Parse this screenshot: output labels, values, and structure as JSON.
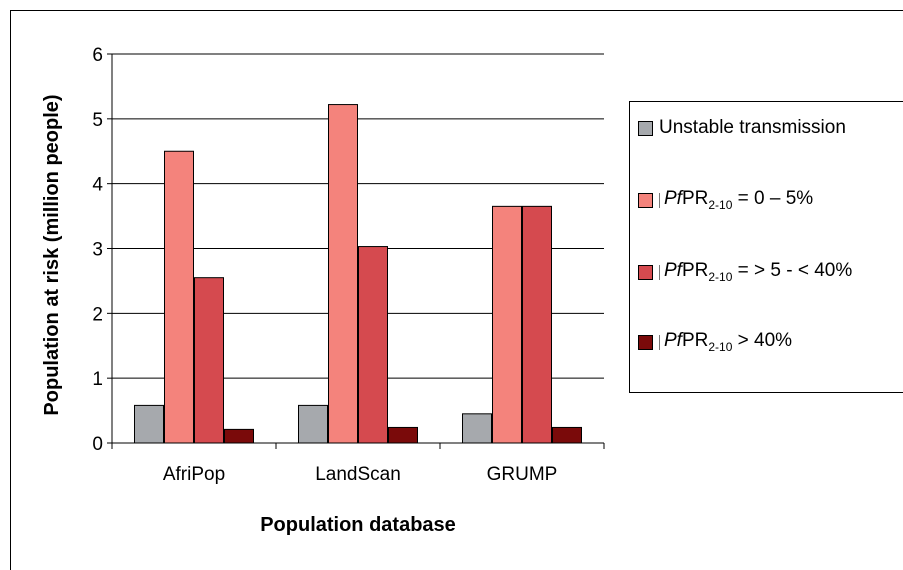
{
  "chart_data": {
    "type": "bar",
    "title": "",
    "xlabel": "Population database",
    "ylabel": "Population at risk (million people)",
    "ylim": [
      0,
      6
    ],
    "yticks": [
      "0",
      "1",
      "2",
      "3",
      "4",
      "5",
      "6"
    ],
    "categories": [
      "AfriPop",
      "LandScan",
      "GRUMP"
    ],
    "grid": "horizontal",
    "legend_position": "right",
    "series": [
      {
        "name": "Unstable transmission",
        "color": "#a6a9ad",
        "values": [
          0.58,
          0.58,
          0.45
        ]
      },
      {
        "name": "PfPR2-10 = 0 – 5%",
        "color": "#f4837c",
        "values": [
          4.5,
          5.22,
          3.65
        ]
      },
      {
        "name": "PfPR2-10 = > 5 - < 40%",
        "color": "#d54a4f",
        "values": [
          2.55,
          3.03,
          3.65
        ]
      },
      {
        "name": "PfPR2-10 > 40%",
        "color": "#7a0a0a",
        "values": [
          0.21,
          0.24,
          0.24
        ]
      }
    ],
    "legend_parts": [
      {
        "text": "Unstable transmission"
      },
      {
        "italic": "Pf",
        "main": "PR",
        "sub": "2-10",
        "rest": " = 0 – 5%"
      },
      {
        "italic": "Pf",
        "main": "PR",
        "sub": "2-10",
        "rest": " = > 5 - < 40%"
      },
      {
        "italic": "Pf",
        "main": "PR",
        "sub": "2-10",
        "rest": " > 40%"
      }
    ]
  }
}
